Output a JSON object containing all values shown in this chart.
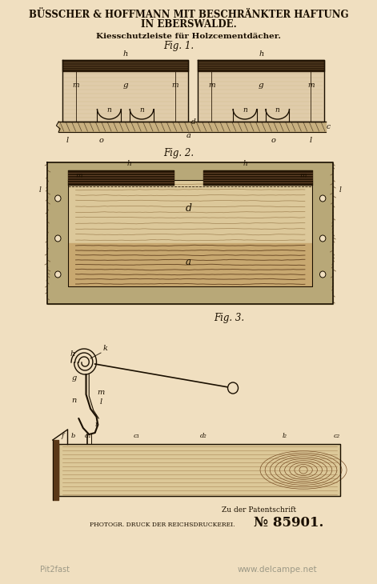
{
  "bg_color": "#f0dfc0",
  "title_line1": "BÜSSCHER & HOFFMANN MIT BESCHRÄNKTER HAFTUNG",
  "title_line2": "IN EBERSWALDE.",
  "subtitle": "Kiesschutzleiste für Holzcementdächer.",
  "fig1_label": "Fig. 1.",
  "fig2_label": "Fig. 2.",
  "fig3_label": "Fig. 3.",
  "bottom_left": "PHOTOGR. DRUCK DER REICHSDRUCKEREI.",
  "bottom_right": "№ 85901.",
  "bottom_right2": "Zu der Patentschrift",
  "watermark": "www.delcampe.net",
  "watermark2": "Pit2fast",
  "dark_color": "#1a0f00",
  "line_color": "#2a1a08",
  "med_color": "#7a6040",
  "fill_tan": "#d4b888",
  "fill_light": "#e8d4a8"
}
